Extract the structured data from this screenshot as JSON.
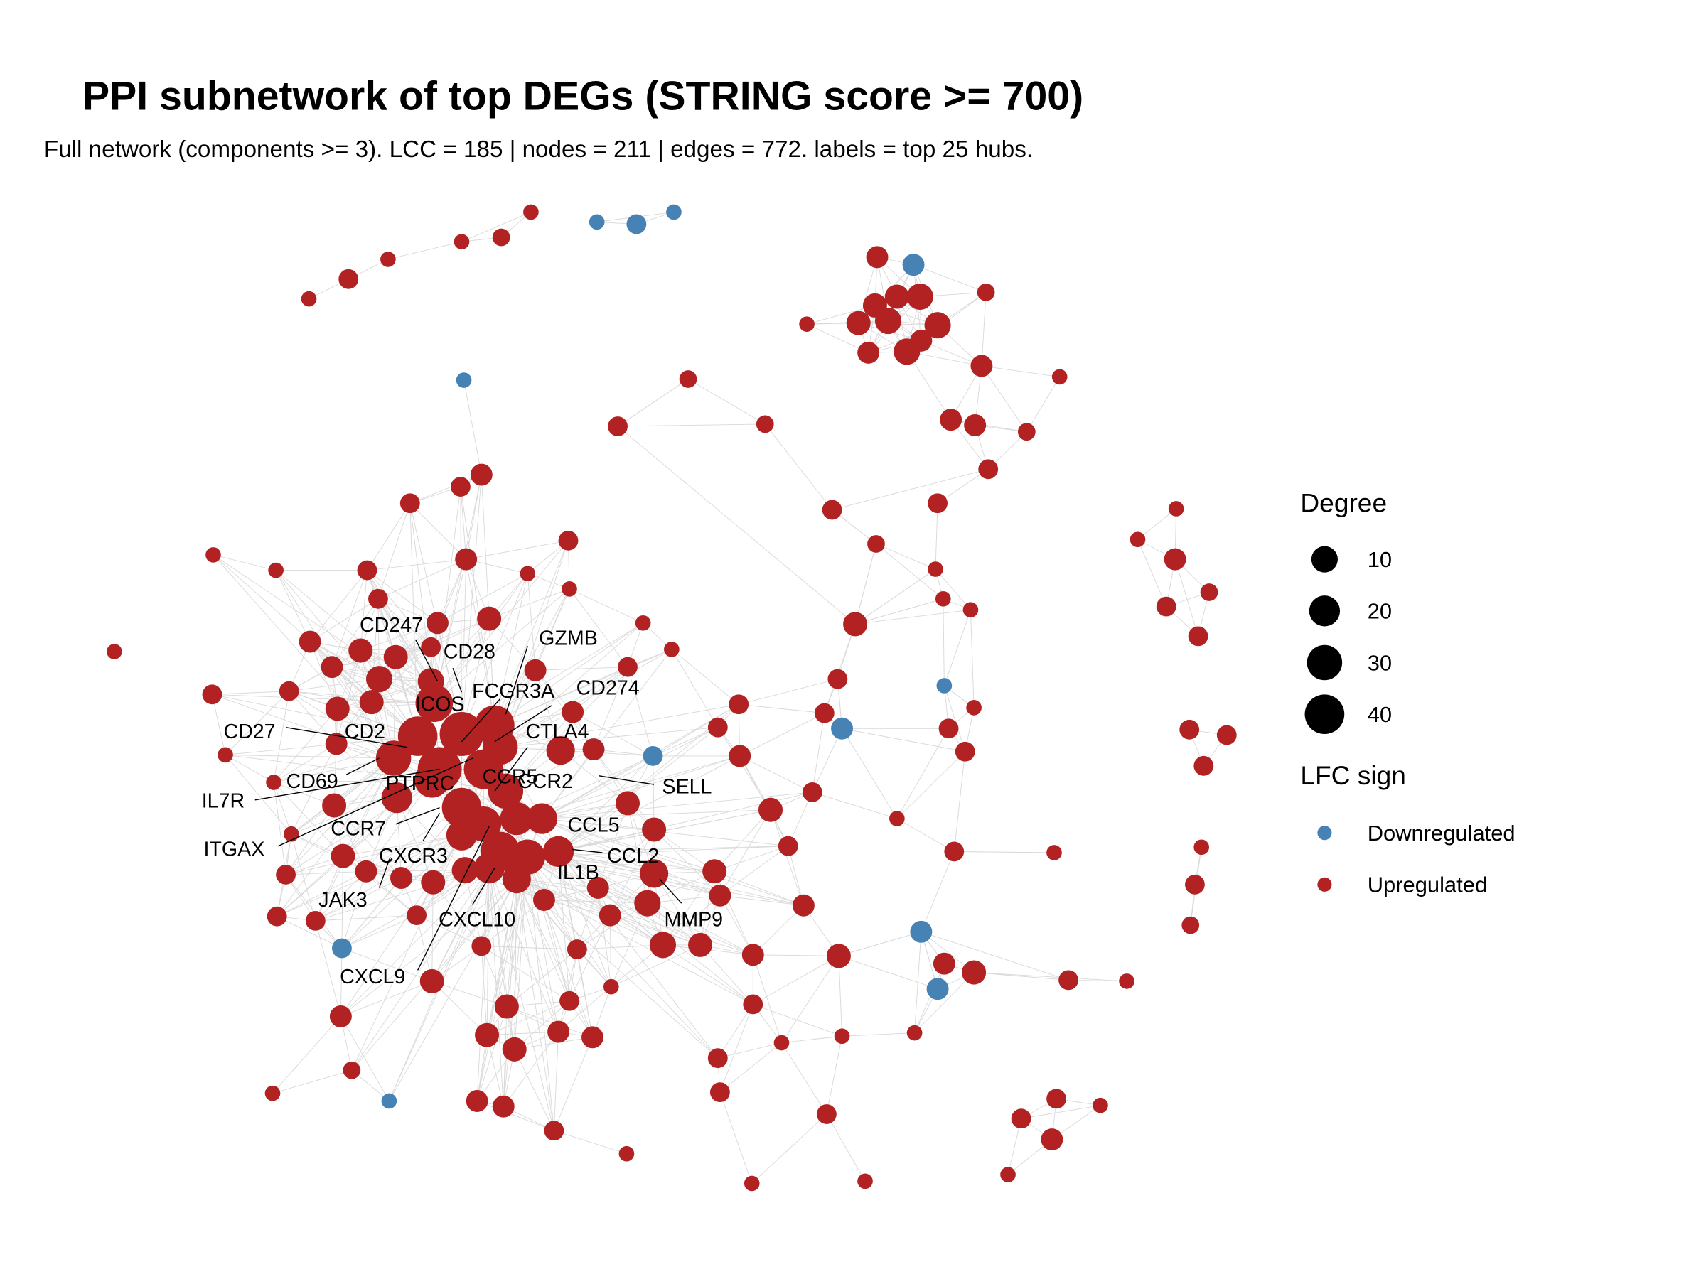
{
  "title": "PPI subnetwork of top DEGs (STRING score >= 700)",
  "subtitle": "Full network (components >= 3). LCC = 185 | nodes = 211 | edges = 772. labels = top 25 hubs.",
  "colors": {
    "Upregulated": "#B22222",
    "Downregulated": "#4682B4",
    "edge": "#d9d9d9"
  },
  "legend": {
    "degree_title": "Degree",
    "degree_values": [
      "10",
      "20",
      "30",
      "40"
    ],
    "lfc_title": "LFC sign",
    "lfc_items": [
      "Downregulated",
      "Upregulated"
    ]
  },
  "hub_labels": [
    "CD247",
    "CD28",
    "GZMB",
    "ICOS",
    "FCGR3A",
    "CD274",
    "CD27",
    "CD2",
    "CTLA4",
    "CD69",
    "PTPRC",
    "CCR5",
    "CCR2",
    "SELL",
    "IL7R",
    "CCL5",
    "ITGAX",
    "CCR7",
    "CXCR3",
    "CCL2",
    "IL1B",
    "JAK3",
    "MMP9",
    "CXCL10",
    "CXCL9"
  ]
}
